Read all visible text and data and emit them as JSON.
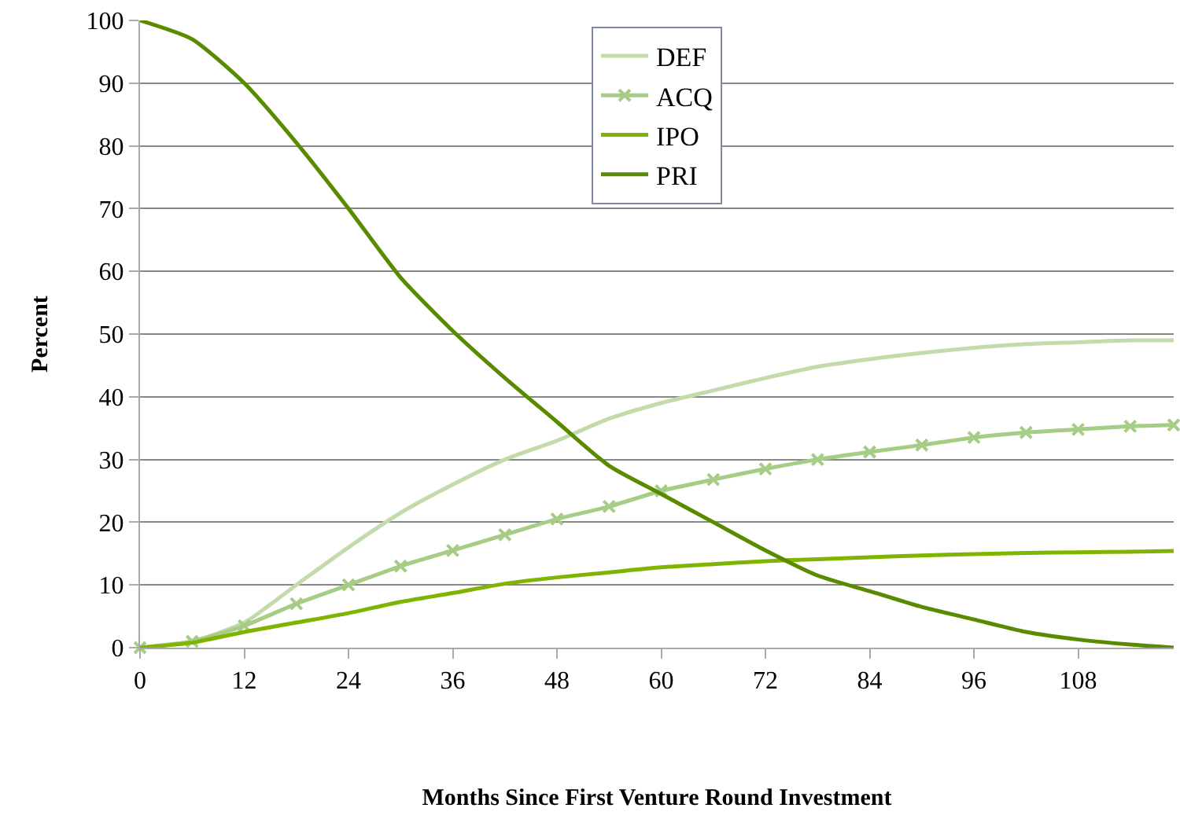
{
  "chart_data": {
    "type": "line",
    "xlabel": "Months Since First Venture Round Investment",
    "ylabel": "Percent",
    "x": [
      0,
      6,
      12,
      18,
      24,
      30,
      36,
      42,
      48,
      54,
      60,
      66,
      72,
      78,
      84,
      90,
      96,
      102,
      108,
      114,
      119
    ],
    "series": [
      {
        "name": "DEF",
        "color": "#c3dbab",
        "values": [
          0,
          1,
          4,
          10,
          16,
          21.5,
          26,
          30,
          33,
          36.5,
          39,
          41,
          43,
          44.8,
          46,
          47,
          47.8,
          48.4,
          48.7,
          49,
          49
        ]
      },
      {
        "name": "ACQ",
        "color": "#a6cc85",
        "marker": "cross",
        "values": [
          0,
          1,
          3.5,
          7,
          10,
          13,
          15.5,
          18,
          20.5,
          22.5,
          25,
          26.8,
          28.5,
          30,
          31.2,
          32.3,
          33.5,
          34.3,
          34.8,
          35.3,
          35.5
        ]
      },
      {
        "name": "IPO",
        "color": "#7fb400",
        "values": [
          0,
          0.8,
          2.5,
          4,
          5.5,
          7.3,
          8.7,
          10.2,
          11.2,
          12,
          12.8,
          13.3,
          13.8,
          14.1,
          14.4,
          14.7,
          14.9,
          15.1,
          15.2,
          15.3,
          15.4
        ]
      },
      {
        "name": "PRI",
        "color": "#5a8a00",
        "values": [
          100,
          97,
          90,
          80.5,
          70,
          59,
          50.5,
          43,
          36,
          29,
          24.5,
          20,
          15.5,
          11.5,
          9,
          6.5,
          4.5,
          2.5,
          1.3,
          0.5,
          0
        ]
      }
    ],
    "xlim": [
      0,
      119
    ],
    "xticks": [
      0,
      12,
      24,
      36,
      48,
      60,
      72,
      84,
      96,
      108
    ],
    "ylim": [
      0,
      100
    ],
    "yticks": [
      0,
      10,
      20,
      30,
      40,
      50,
      60,
      70,
      80,
      90,
      100
    ],
    "grid": "y",
    "legend": "top",
    "marker": "none",
    "line_style": "solid"
  }
}
